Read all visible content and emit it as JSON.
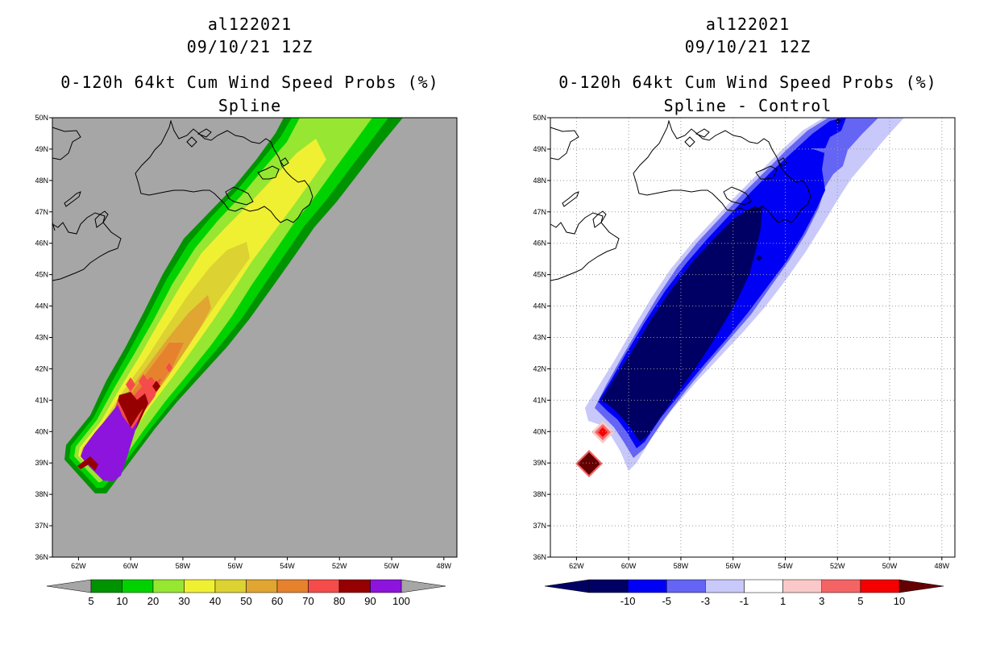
{
  "chart_data": [
    {
      "type": "heatmap",
      "panel": "left",
      "storm_id": "al122021",
      "datetime": "09/10/21 12Z",
      "title": "0-120h 64kt Cum Wind Speed Probs (%)",
      "subtitle": "Spline",
      "xlim": [
        -63,
        -47.5
      ],
      "ylim": [
        36,
        50
      ],
      "x_ticks": [
        -62,
        -60,
        -58,
        -56,
        -54,
        -52,
        -50,
        -48
      ],
      "x_tick_labels": [
        "62W",
        "60W",
        "58W",
        "56W",
        "54W",
        "52W",
        "50W",
        "48W"
      ],
      "y_ticks": [
        36,
        37,
        38,
        39,
        40,
        41,
        42,
        43,
        44,
        45,
        46,
        47,
        48,
        49,
        50
      ],
      "y_tick_labels": [
        "36N",
        "37N",
        "38N",
        "39N",
        "40N",
        "41N",
        "42N",
        "43N",
        "44N",
        "45N",
        "46N",
        "47N",
        "48N",
        "49N",
        "50N"
      ],
      "grid": false,
      "colorbar": {
        "levels": [
          "5",
          "10",
          "20",
          "30",
          "40",
          "50",
          "60",
          "70",
          "80",
          "90",
          "100"
        ],
        "colors": [
          "#009300",
          "#00d200",
          "#96e632",
          "#f0f032",
          "#dcd232",
          "#e1a532",
          "#e6822d",
          "#f54b4b",
          "#960000",
          "#8c14dc"
        ],
        "extend_colors": [
          "#a6a6a6",
          "#a6a6a6"
        ]
      },
      "background": "#a6a6a6"
    },
    {
      "type": "heatmap",
      "panel": "right",
      "storm_id": "al122021",
      "datetime": "09/10/21 12Z",
      "title": "0-120h 64kt Cum Wind Speed Probs (%)",
      "subtitle": "Spline - Control",
      "xlim": [
        -63,
        -47.5
      ],
      "ylim": [
        36,
        50
      ],
      "x_ticks": [
        -62,
        -60,
        -58,
        -56,
        -54,
        -52,
        -50,
        -48
      ],
      "x_tick_labels": [
        "62W",
        "60W",
        "58W",
        "56W",
        "54W",
        "52W",
        "50W",
        "48W"
      ],
      "y_ticks": [
        36,
        37,
        38,
        39,
        40,
        41,
        42,
        43,
        44,
        45,
        46,
        47,
        48,
        49,
        50
      ],
      "y_tick_labels": [
        "36N",
        "37N",
        "38N",
        "39N",
        "40N",
        "41N",
        "42N",
        "43N",
        "44N",
        "45N",
        "46N",
        "47N",
        "48N",
        "49N",
        "50N"
      ],
      "grid": true,
      "colorbar": {
        "levels": [
          "-10",
          "-5",
          "-3",
          "-1",
          "1",
          "3",
          "5",
          "10"
        ],
        "colors": [
          "#000064",
          "#0000f5",
          "#6464f5",
          "#c8c8fa",
          "#ffffff",
          "#fac8c8",
          "#f56464",
          "#f50000"
        ],
        "extend_colors": [
          "#000064",
          "#640000"
        ]
      },
      "background": "#ffffff"
    }
  ]
}
